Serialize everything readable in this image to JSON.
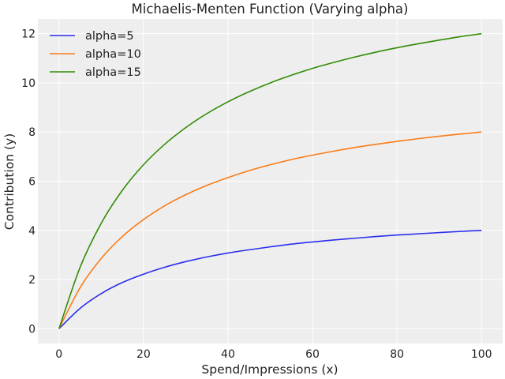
{
  "chart_data": {
    "type": "line",
    "title": "Michaelis-Menten Function (Varying alpha)",
    "xlabel": "Spend/Impressions (x)",
    "ylabel": "Contribution (y)",
    "xlim": [
      -5,
      105
    ],
    "ylim": [
      -0.6,
      12.6
    ],
    "xticks": [
      0,
      20,
      40,
      60,
      80,
      100
    ],
    "yticks": [
      0,
      2,
      4,
      6,
      8,
      10,
      12
    ],
    "grid": true,
    "legend_placement": "top-left",
    "background": "#eeeeee",
    "x": [
      0,
      5,
      10,
      15,
      20,
      25,
      30,
      35,
      40,
      45,
      50,
      55,
      60,
      65,
      70,
      75,
      80,
      85,
      90,
      95,
      100
    ],
    "series": [
      {
        "name": "alpha=5",
        "color": "#2a2eec",
        "values": [
          0,
          0.83,
          1.43,
          1.88,
          2.22,
          2.5,
          2.73,
          2.92,
          3.08,
          3.21,
          3.33,
          3.44,
          3.53,
          3.61,
          3.68,
          3.75,
          3.81,
          3.86,
          3.91,
          3.96,
          4.0
        ]
      },
      {
        "name": "alpha=10",
        "color": "#fa7c17",
        "values": [
          0,
          1.67,
          2.86,
          3.75,
          4.44,
          5.0,
          5.45,
          5.83,
          6.15,
          6.43,
          6.67,
          6.88,
          7.06,
          7.22,
          7.37,
          7.5,
          7.62,
          7.73,
          7.83,
          7.92,
          8.0
        ]
      },
      {
        "name": "alpha=15",
        "color": "#328c06",
        "values": [
          0,
          2.5,
          4.29,
          5.63,
          6.67,
          7.5,
          8.18,
          8.75,
          9.23,
          9.64,
          10.0,
          10.31,
          10.59,
          10.83,
          11.05,
          11.25,
          11.43,
          11.59,
          11.74,
          11.88,
          12.0
        ]
      }
    ]
  }
}
